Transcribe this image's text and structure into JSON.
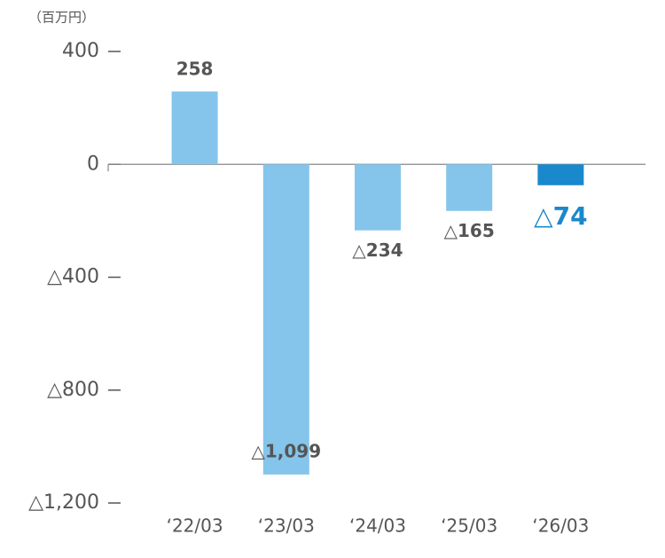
{
  "chart_data": {
    "type": "bar",
    "unit": "（百万円）",
    "categories": [
      "‘22/03",
      "‘23/03",
      "‘24/03",
      "‘25/03",
      "‘26/03"
    ],
    "values": [
      258,
      -1099,
      -234,
      -165,
      -74
    ],
    "value_labels": [
      "258",
      "△1,099",
      "△234",
      "△165",
      "△74"
    ],
    "colors": [
      "#85c5eb",
      "#85c5eb",
      "#85c5eb",
      "#85c5eb",
      "#1a88cc"
    ],
    "label_colors": [
      "#555555",
      "#555555",
      "#555555",
      "#555555",
      "#1a88cc"
    ],
    "ylim": [
      -1200,
      400
    ],
    "yticks": [
      400,
      0,
      {
        "value": -400,
        "label": "△400"
      },
      {
        "value": -800,
        "label": "△800"
      },
      {
        "value": -1200,
        "label": "△1,200"
      }
    ]
  }
}
